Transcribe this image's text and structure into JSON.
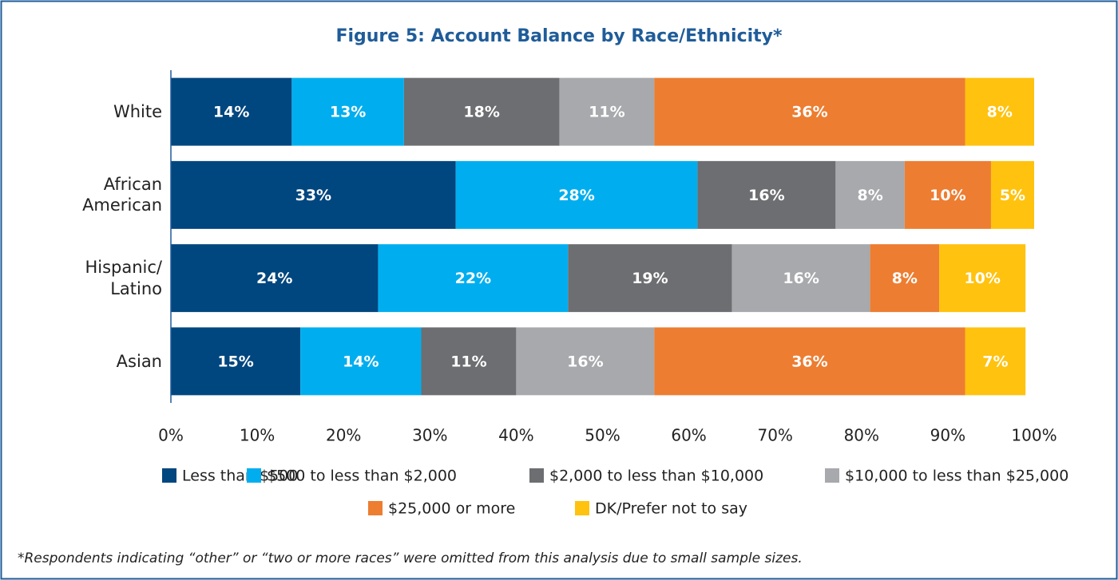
{
  "chart_data": {
    "type": "stacked_barh",
    "title": "Figure 5: Account Balance by Race/Ethnicity*",
    "categories": [
      "White",
      "African\nAmerican",
      "Hispanic/\nLatino",
      "Asian"
    ],
    "series": [
      {
        "name": "Less than $500",
        "color": "#00467f",
        "values": [
          14,
          33,
          24,
          15
        ],
        "value_labels": [
          "14%",
          "33%",
          "24%",
          "15%"
        ]
      },
      {
        "name": "$500 to less than $2,000",
        "color": "#00aeef",
        "values": [
          13,
          28,
          22,
          14
        ],
        "value_labels": [
          "13%",
          "28%",
          "22%",
          "14%"
        ]
      },
      {
        "name": "$2,000 to less than $10,000",
        "color": "#6d6e71",
        "values": [
          18,
          16,
          19,
          11
        ],
        "value_labels": [
          "18%",
          "16%",
          "19%",
          "11%"
        ]
      },
      {
        "name": "$10,000 to less than $25,000",
        "color": "#a7a9ac",
        "values": [
          11,
          8,
          16,
          16
        ],
        "value_labels": [
          "11%",
          "8%",
          "16%",
          "16%"
        ]
      },
      {
        "name": "$25,000 or more",
        "color": "#ed7d31",
        "values": [
          36,
          10,
          8,
          36
        ],
        "value_labels": [
          "36%",
          "10%",
          "8%",
          "36%"
        ]
      },
      {
        "name": "DK/Prefer not to say",
        "color": "#ffc20e",
        "values": [
          8,
          5,
          10,
          7
        ],
        "value_labels": [
          "8%",
          "5%",
          "10%",
          "7%"
        ]
      }
    ],
    "xlim": [
      0,
      100
    ],
    "xticks": [
      {
        "value": 0,
        "label": "0%"
      },
      {
        "value": 10,
        "label": "10%"
      },
      {
        "value": 20,
        "label": "20%"
      },
      {
        "value": 30,
        "label": "30%"
      },
      {
        "value": 40,
        "label": "40%"
      },
      {
        "value": 50,
        "label": "50%"
      },
      {
        "value": 60,
        "label": "60%"
      },
      {
        "value": 70,
        "label": "70%"
      },
      {
        "value": 80,
        "label": "80%"
      },
      {
        "value": 90,
        "label": "90%"
      },
      {
        "value": 100,
        "label": "100%"
      }
    ],
    "footnote": "*Respondents indicating “other” or “two or more races” were omitted from this analysis due to small sample sizes."
  }
}
